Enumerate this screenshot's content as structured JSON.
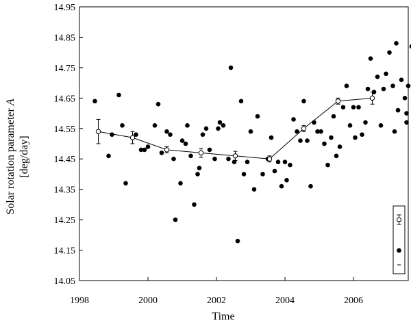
{
  "chart_data": {
    "type": "scatter",
    "title": "",
    "xlabel": "Time",
    "ylabel_line1": "Solar rotation parameter",
    "ylabel_symbol": "A",
    "ylabel_line2": "[deg/day]",
    "xlim": [
      1998,
      2007.6
    ],
    "ylim": [
      14.05,
      14.95
    ],
    "xticks": [
      1998,
      2000,
      2002,
      2004,
      2006
    ],
    "xtick_labels": [
      "1998",
      "2000",
      "2002",
      "2004",
      "2006"
    ],
    "yticks": [
      14.05,
      14.15,
      14.25,
      14.35,
      14.45,
      14.55,
      14.65,
      14.75,
      14.85,
      14.95
    ],
    "ytick_labels": [
      "14.05",
      "14.15",
      "14.25",
      "14.35",
      "14.45",
      "14.55",
      "14.65",
      "14.75",
      "14.85",
      "14.95"
    ],
    "grid": false,
    "legend_position": "bottom-right",
    "series": [
      {
        "kind": "points",
        "marker": "filled-circle",
        "points": [
          [
            1998.45,
            14.64
          ],
          [
            1998.85,
            14.46
          ],
          [
            1998.95,
            14.53
          ],
          [
            1999.15,
            14.66
          ],
          [
            1999.25,
            14.56
          ],
          [
            1999.35,
            14.37
          ],
          [
            1999.65,
            14.53
          ],
          [
            1999.8,
            14.48
          ],
          [
            1999.9,
            14.48
          ],
          [
            2000.0,
            14.49
          ],
          [
            2000.2,
            14.56
          ],
          [
            2000.3,
            14.63
          ],
          [
            2000.4,
            14.47
          ],
          [
            2000.55,
            14.54
          ],
          [
            2000.65,
            14.53
          ],
          [
            2000.75,
            14.45
          ],
          [
            2000.8,
            14.25
          ],
          [
            2000.95,
            14.37
          ],
          [
            2001.0,
            14.51
          ],
          [
            2001.1,
            14.5
          ],
          [
            2001.15,
            14.56
          ],
          [
            2001.25,
            14.46
          ],
          [
            2001.35,
            14.3
          ],
          [
            2001.45,
            14.4
          ],
          [
            2001.5,
            14.42
          ],
          [
            2001.6,
            14.53
          ],
          [
            2001.7,
            14.55
          ],
          [
            2001.8,
            14.48
          ],
          [
            2001.95,
            14.45
          ],
          [
            2002.05,
            14.55
          ],
          [
            2002.1,
            14.57
          ],
          [
            2002.2,
            14.56
          ],
          [
            2002.35,
            14.45
          ],
          [
            2002.42,
            14.75
          ],
          [
            2002.52,
            14.44
          ],
          [
            2002.62,
            14.18
          ],
          [
            2002.72,
            14.64
          ],
          [
            2002.8,
            14.4
          ],
          [
            2002.9,
            14.44
          ],
          [
            2003.0,
            14.54
          ],
          [
            2003.1,
            14.35
          ],
          [
            2003.2,
            14.59
          ],
          [
            2003.35,
            14.4
          ],
          [
            2003.5,
            14.45
          ],
          [
            2003.6,
            14.52
          ],
          [
            2003.7,
            14.41
          ],
          [
            2003.8,
            14.44
          ],
          [
            2003.9,
            14.36
          ],
          [
            2004.0,
            14.44
          ],
          [
            2004.05,
            14.38
          ],
          [
            2004.15,
            14.43
          ],
          [
            2004.25,
            14.58
          ],
          [
            2004.35,
            14.54
          ],
          [
            2004.45,
            14.51
          ],
          [
            2004.55,
            14.64
          ],
          [
            2004.65,
            14.51
          ],
          [
            2004.75,
            14.36
          ],
          [
            2004.85,
            14.57
          ],
          [
            2004.95,
            14.54
          ],
          [
            2005.05,
            14.54
          ],
          [
            2005.15,
            14.5
          ],
          [
            2005.25,
            14.43
          ],
          [
            2005.35,
            14.52
          ],
          [
            2005.42,
            14.59
          ],
          [
            2005.5,
            14.46
          ],
          [
            2005.6,
            14.49
          ],
          [
            2005.7,
            14.62
          ],
          [
            2005.8,
            14.69
          ],
          [
            2005.9,
            14.56
          ],
          [
            2006.0,
            14.62
          ],
          [
            2006.05,
            14.52
          ],
          [
            2006.15,
            14.62
          ],
          [
            2006.25,
            14.53
          ],
          [
            2006.35,
            14.57
          ],
          [
            2006.42,
            14.68
          ],
          [
            2006.5,
            14.78
          ],
          [
            2006.6,
            14.67
          ],
          [
            2006.7,
            14.72
          ],
          [
            2006.8,
            14.56
          ],
          [
            2006.88,
            14.68
          ],
          [
            2006.95,
            14.73
          ],
          [
            2007.05,
            14.8
          ],
          [
            2007.15,
            14.69
          ],
          [
            2007.2,
            14.54
          ],
          [
            2007.25,
            14.83
          ],
          [
            2007.3,
            14.61
          ],
          [
            2007.4,
            14.71
          ],
          [
            2007.5,
            14.65
          ],
          [
            2007.55,
            14.6
          ],
          [
            2007.55,
            14.57
          ],
          [
            2007.6,
            14.69
          ],
          [
            2007.7,
            14.82
          ],
          [
            2007.75,
            14.64
          ]
        ]
      },
      {
        "kind": "line-with-errorbars",
        "marker": "open-circle",
        "points": [
          {
            "x": 1998.55,
            "y": 14.54,
            "err": 0.04
          },
          {
            "x": 1999.55,
            "y": 14.52,
            "err": 0.02
          },
          {
            "x": 2000.55,
            "y": 14.48,
            "err": 0.01
          },
          {
            "x": 2001.55,
            "y": 14.47,
            "err": 0.015
          },
          {
            "x": 2002.55,
            "y": 14.46,
            "err": 0.015
          },
          {
            "x": 2003.55,
            "y": 14.45,
            "err": 0.01
          },
          {
            "x": 2004.55,
            "y": 14.55,
            "err": 0.01
          },
          {
            "x": 2005.55,
            "y": 14.64,
            "err": 0.01
          },
          {
            "x": 2006.55,
            "y": 14.65,
            "err": 0.02
          }
        ]
      }
    ]
  }
}
